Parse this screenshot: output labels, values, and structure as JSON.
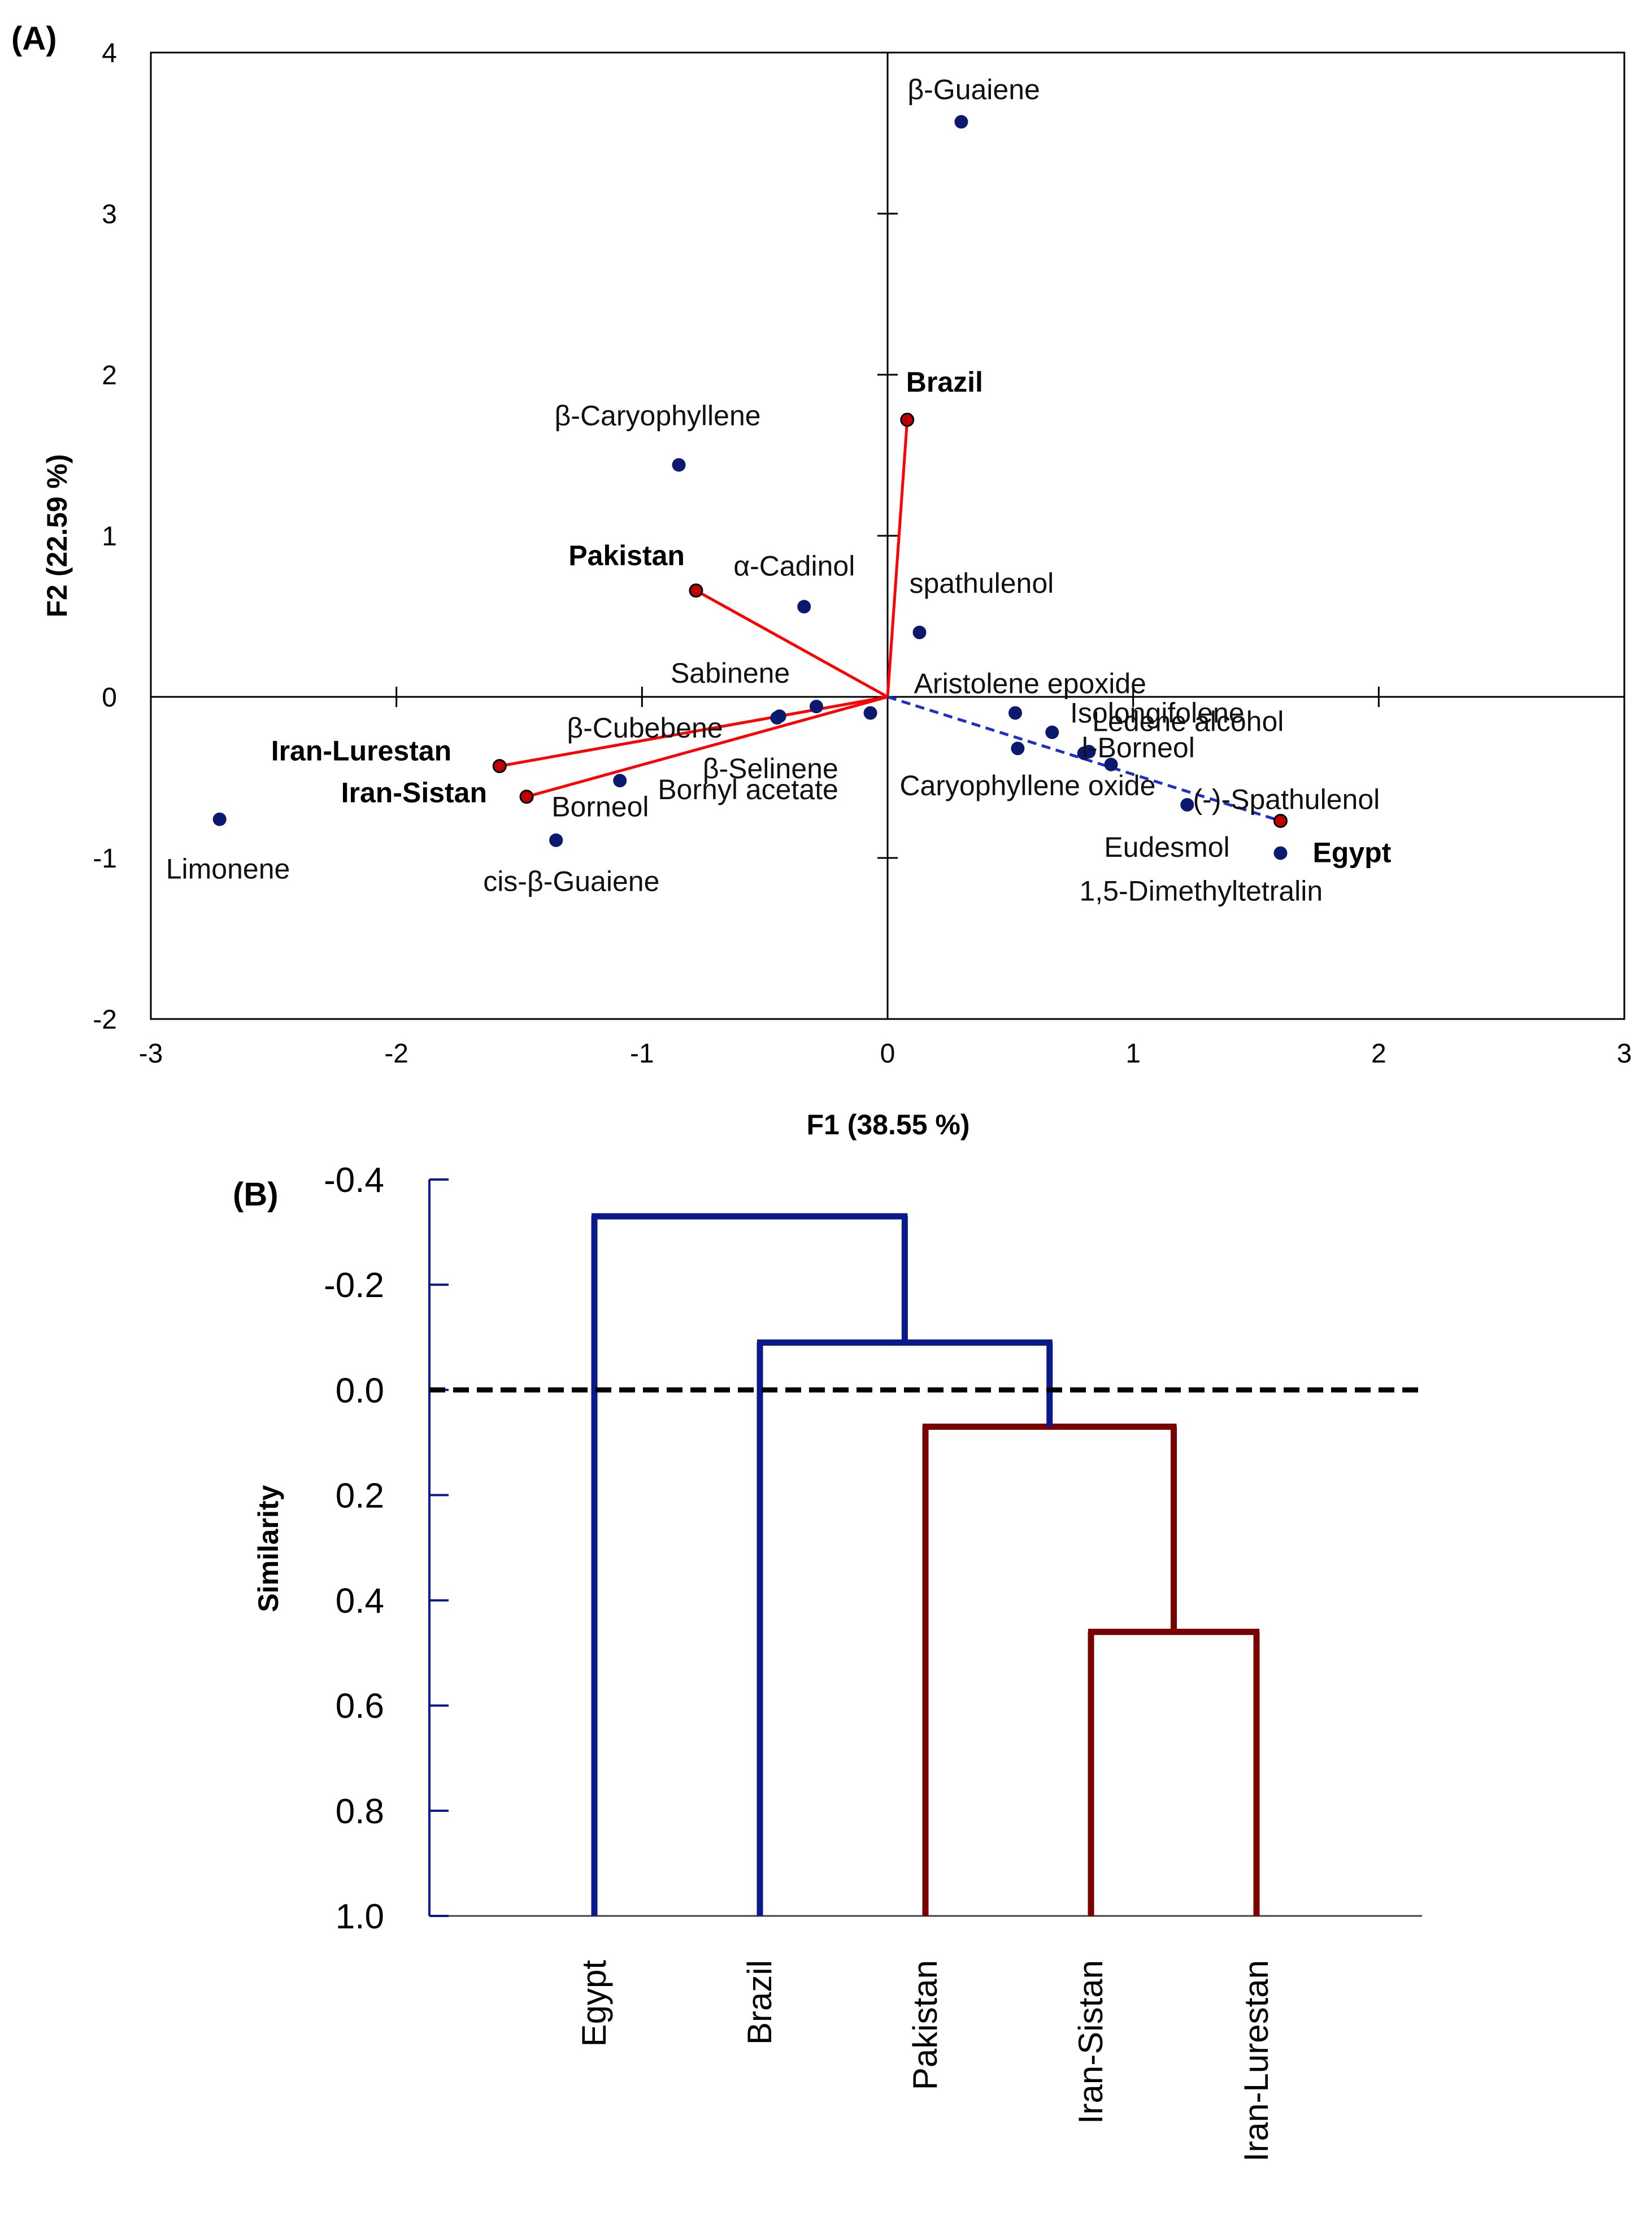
{
  "colors": {
    "point": "#0b1a6e",
    "vector": "#ff0000",
    "vector_point": "#c00000",
    "dashed_vector": "#1f2fc4",
    "cluster_blue": "#0a1a8a",
    "cluster_red": "#7a0000",
    "highlight_label": "#c00000",
    "axis": "#000000"
  },
  "chart_data": [
    {
      "panel": "(A)",
      "type": "scatter",
      "subtype": "biplot",
      "xlabel": "F1 (38.55 %)",
      "ylabel": "F2 (22.59 %)",
      "xlim": [
        -3,
        3
      ],
      "ylim": [
        -2,
        4
      ],
      "xticks": [
        -3,
        -2,
        -1,
        0,
        1,
        2,
        3
      ],
      "yticks": [
        -2,
        -1,
        0,
        1,
        2,
        3,
        4
      ],
      "variables": [
        {
          "name": "β-Guaiene",
          "x": 0.3,
          "y": 3.57
        },
        {
          "name": "β-Caryophyllene",
          "x": -0.85,
          "y": 1.44
        },
        {
          "name": "α-Cadinol",
          "x": -0.34,
          "y": 0.56
        },
        {
          "name": "spathulenol",
          "x": 0.13,
          "y": 0.4
        },
        {
          "name": "Aristolene epoxide",
          "x": -0.07,
          "y": -0.1
        },
        {
          "name": "Sabinene",
          "x": -0.29,
          "y": -0.06
        },
        {
          "name": "β-Cubebene",
          "x": -0.45,
          "y": -0.13
        },
        {
          "name": "β-Selinene",
          "x": -0.44,
          "y": -0.12
        },
        {
          "name": "Bornyl acetate",
          "x": -1.09,
          "y": -0.52
        },
        {
          "name": "Borneol",
          "x": -1.35,
          "y": -0.89
        },
        {
          "name": "cis-β-Guaiene",
          "x": -1.35,
          "y": -0.89
        },
        {
          "name": "Limonene",
          "x": -2.72,
          "y": -0.76
        },
        {
          "name": "Isolongifolene",
          "x": 0.52,
          "y": -0.1
        },
        {
          "name": "Ledene alcohol",
          "x": 0.67,
          "y": -0.22
        },
        {
          "name": "l-Borneol",
          "x": 0.8,
          "y": -0.35
        },
        {
          "name": "Caryophyllene oxide",
          "x": 0.53,
          "y": -0.32
        },
        {
          "name": "(-)-Spathulenol",
          "x": 0.91,
          "y": -0.42
        },
        {
          "name": "Eudesmol",
          "x": 1.22,
          "y": -0.67
        },
        {
          "name": "1,5-Dimethyltetralin",
          "x": 1.6,
          "y": -0.97
        }
      ],
      "dot_only": [
        {
          "x": 0.82,
          "y": -0.34
        }
      ],
      "observations": [
        {
          "name": "Brazil",
          "x": 0.08,
          "y": 1.72,
          "line": "solid"
        },
        {
          "name": "Pakistan",
          "x": -0.78,
          "y": 0.66,
          "line": "solid"
        },
        {
          "name": "Iran-Lurestan",
          "x": -1.58,
          "y": -0.43,
          "line": "solid"
        },
        {
          "name": "Iran-Sistan",
          "x": -1.47,
          "y": -0.62,
          "line": "solid"
        },
        {
          "name": "Egypt",
          "x": 1.6,
          "y": -0.77,
          "line": "dashed"
        }
      ]
    },
    {
      "panel": "(B)",
      "type": "dendrogram",
      "ylabel": "Similarity",
      "ylim": [
        -0.4,
        1.0
      ],
      "yticks": [
        "-0.4",
        "-0.2",
        "0.0",
        "0.2",
        "0.4",
        "0.6",
        "0.8",
        "1.0"
      ],
      "cut_line": 0.0,
      "leaves": [
        "Egypt",
        "Brazil",
        "Pakistan",
        "Iran-Sistan",
        "Iran-Lurestan"
      ],
      "merges": [
        {
          "left": [
            "Iran-Sistan"
          ],
          "right": [
            "Iran-Lurestan"
          ],
          "similarity": 0.46,
          "group": "red"
        },
        {
          "left": [
            "Pakistan"
          ],
          "right": [
            "Iran-Sistan",
            "Iran-Lurestan"
          ],
          "similarity": 0.07,
          "group": "red"
        },
        {
          "left": [
            "Brazil"
          ],
          "right": [
            "Pakistan",
            "Iran-Sistan",
            "Iran-Lurestan"
          ],
          "similarity": -0.09,
          "group": "blue"
        },
        {
          "left": [
            "Egypt"
          ],
          "right": [
            "Brazil",
            "Pakistan",
            "Iran-Sistan",
            "Iran-Lurestan"
          ],
          "similarity": -0.33,
          "group": "blue"
        }
      ]
    }
  ]
}
